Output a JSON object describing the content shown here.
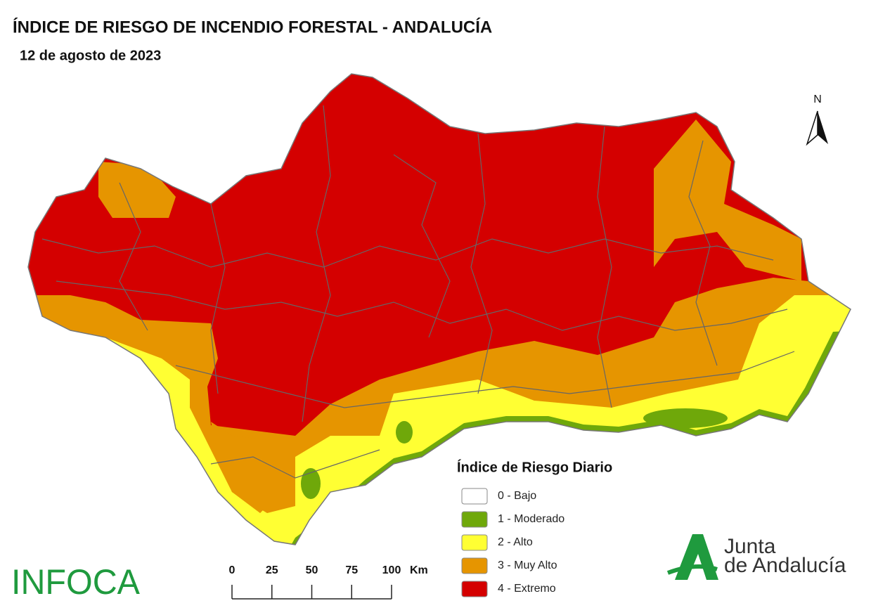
{
  "header": {
    "title": "ÍNDICE DE RIESGO DE INCENDIO FORESTAL - ANDALUCÍA",
    "date": "12 de agosto de 2023"
  },
  "north_arrow": {
    "label": "N"
  },
  "legend": {
    "title": "Índice de Riesgo Diario",
    "items": [
      {
        "label": "0 - Bajo",
        "color": "#ffffff"
      },
      {
        "label": "1 - Moderado",
        "color": "#6fa80a"
      },
      {
        "label": "2 - Alto",
        "color": "#ffff33"
      },
      {
        "label": "3 - Muy Alto",
        "color": "#e69500"
      },
      {
        "label": "4 - Extremo",
        "color": "#d40000"
      }
    ]
  },
  "scale_bar": {
    "ticks": [
      0,
      25,
      50,
      75,
      100
    ],
    "unit": "Km"
  },
  "logos": {
    "left": "INFOCA",
    "right_line1": "Junta",
    "right_line2": "de Andalucía"
  }
}
